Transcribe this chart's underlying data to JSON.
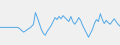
{
  "values": [
    0.0,
    0.0,
    0.0,
    0.0,
    0.0,
    0.0,
    0.0,
    0.0,
    0.0,
    0.0,
    -0.3,
    -0.8,
    -1.2,
    -0.9,
    -0.5,
    -0.2,
    0.2,
    0.8,
    3.8,
    2.5,
    1.0,
    -0.5,
    -1.5,
    -2.0,
    -1.0,
    -0.3,
    0.5,
    1.5,
    2.5,
    2.0,
    2.8,
    2.2,
    3.0,
    2.5,
    2.0,
    1.5,
    2.8,
    1.5,
    0.8,
    1.5,
    2.5,
    1.8,
    0.5,
    -0.5,
    -1.5,
    -2.5,
    -1.5,
    -0.5,
    1.0,
    2.0,
    1.5,
    3.5,
    2.0,
    1.0,
    1.8,
    1.2,
    0.8,
    1.5,
    2.2,
    1.5,
    0.8,
    0.3
  ],
  "line_color": "#4fa8e8",
  "linewidth": 0.7,
  "background_color": "#f0f0f0",
  "ylim": [
    -4.5,
    7.0
  ]
}
